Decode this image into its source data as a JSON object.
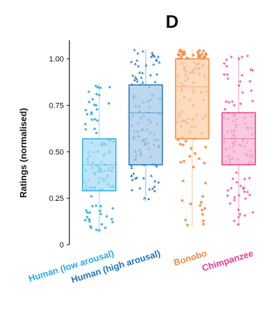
{
  "panel_letter": "D",
  "chart_data": {
    "type": "box",
    "title": "",
    "xlabel": "",
    "ylabel": "Ratings (normalised)",
    "ylim": [
      0,
      1.1
    ],
    "yticks": [
      0,
      0.25,
      0.5,
      0.75,
      1.0
    ],
    "ytick_labels": [
      "0",
      "0.25",
      "0.50",
      "0.75",
      "1.00"
    ],
    "grid": false,
    "legend": "none",
    "categories": [
      "Human (low arousal)",
      "Human (high arousal)",
      "Bonobo",
      "Chimpanzee"
    ],
    "series": [
      {
        "category": "Human (low arousal)",
        "color": "#29abe2",
        "fill": "#a8dcf4",
        "marker": "circle",
        "whisker_low": 0.06,
        "q1": 0.29,
        "median": 0.43,
        "q3": 0.57,
        "whisker_high": 0.87
      },
      {
        "category": "Human (high arousal)",
        "color": "#1b75bb",
        "fill": "#a5c9e8",
        "marker": "triangle",
        "whisker_low": 0.23,
        "q1": 0.43,
        "median": 0.71,
        "q3": 0.86,
        "whisker_high": 1.05
      },
      {
        "category": "Bonobo",
        "color": "#f28a3c",
        "fill": "#fbcfa9",
        "marker": "square",
        "whisker_low": 0.1,
        "q1": 0.57,
        "median": 0.85,
        "q3": 1.0,
        "whisker_high": 1.05
      },
      {
        "category": "Chimpanzee",
        "color": "#ec3a8c",
        "fill": "#f7b7d5",
        "marker": "cross",
        "whisker_low": 0.1,
        "q1": 0.43,
        "median": 0.57,
        "q3": 0.71,
        "whisker_high": 1.02
      }
    ]
  }
}
